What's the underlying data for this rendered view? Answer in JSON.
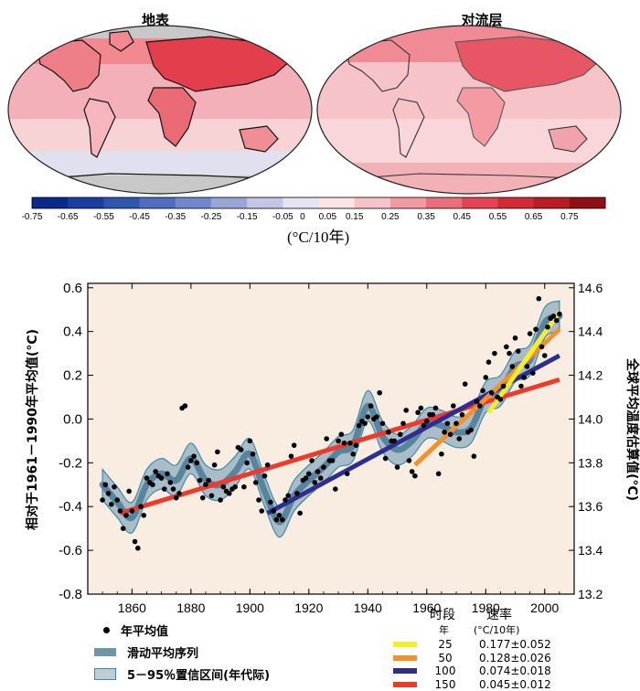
{
  "maps": {
    "left_title": "地表",
    "right_title": "对流层",
    "colorbar_ticks": [
      "-0.75",
      "-0.65",
      "-0.55",
      "-0.45",
      "-0.35",
      "-0.25",
      "-0.15",
      "-0.05",
      "0",
      "0.05",
      "0.15",
      "0.25",
      "0.35",
      "0.45",
      "0.55",
      "0.65",
      "0.75"
    ],
    "colorbar_colors": [
      "#0a2a8c",
      "#1a3ea0",
      "#2e55b0",
      "#4c6fc0",
      "#7087cc",
      "#9aa5d6",
      "#c3c6e4",
      "#e4e4f2",
      "#fbe3e6",
      "#f7c3c8",
      "#f19aa2",
      "#ea6f7a",
      "#e34352",
      "#d42a36",
      "#b81c24",
      "#8f1016"
    ],
    "unit": "(°C/10年)",
    "land_color": "#c8c8c8",
    "ocean_base": "#f2b5bb"
  },
  "chart_data": {
    "type": "line",
    "title": "",
    "xlabel": "",
    "ylabel": "相对于1961－1990年平均值(°C)",
    "ylabel_right": "全球平均温度估算值(°C)",
    "xlim": [
      1845,
      2010
    ],
    "ylim": [
      -0.8,
      0.62
    ],
    "ylim_right": [
      13.2,
      14.62
    ],
    "x_ticks": [
      "1860",
      "1880",
      "1900",
      "1920",
      "1940",
      "1960",
      "1980",
      "2000"
    ],
    "y_ticks": [
      "0.6",
      "0.4",
      "0.2",
      "0.0",
      "-0.2",
      "-0.4",
      "-0.6",
      "-0.8"
    ],
    "y_ticks_right": [
      "14.6",
      "14.4",
      "14.2",
      "14.0",
      "13.8",
      "13.6",
      "13.4",
      "13.2"
    ],
    "annual_points": {
      "x": [
        1850,
        1851,
        1852,
        1853,
        1854,
        1855,
        1856,
        1857,
        1858,
        1859,
        1860,
        1861,
        1862,
        1863,
        1864,
        1865,
        1866,
        1867,
        1868,
        1869,
        1870,
        1871,
        1872,
        1873,
        1874,
        1875,
        1876,
        1877,
        1878,
        1879,
        1880,
        1881,
        1882,
        1883,
        1884,
        1885,
        1886,
        1887,
        1888,
        1889,
        1890,
        1891,
        1892,
        1893,
        1894,
        1895,
        1896,
        1897,
        1898,
        1899,
        1900,
        1901,
        1902,
        1903,
        1904,
        1905,
        1906,
        1907,
        1908,
        1909,
        1910,
        1911,
        1912,
        1913,
        1914,
        1915,
        1916,
        1917,
        1918,
        1919,
        1920,
        1921,
        1922,
        1923,
        1924,
        1925,
        1926,
        1927,
        1928,
        1929,
        1930,
        1931,
        1932,
        1933,
        1934,
        1935,
        1936,
        1937,
        1938,
        1939,
        1940,
        1941,
        1942,
        1943,
        1944,
        1945,
        1946,
        1947,
        1948,
        1949,
        1950,
        1951,
        1952,
        1953,
        1954,
        1955,
        1956,
        1957,
        1958,
        1959,
        1960,
        1961,
        1962,
        1963,
        1964,
        1965,
        1966,
        1967,
        1968,
        1969,
        1970,
        1971,
        1972,
        1973,
        1974,
        1975,
        1976,
        1977,
        1978,
        1979,
        1980,
        1981,
        1982,
        1983,
        1984,
        1985,
        1986,
        1987,
        1988,
        1989,
        1990,
        1991,
        1992,
        1993,
        1994,
        1995,
        1996,
        1997,
        1998,
        1999,
        2000,
        2001,
        2002,
        2003,
        2004,
        2005
      ],
      "y": [
        -0.37,
        -0.3,
        -0.34,
        -0.39,
        -0.31,
        -0.37,
        -0.42,
        -0.5,
        -0.44,
        -0.33,
        -0.42,
        -0.56,
        -0.59,
        -0.4,
        -0.44,
        -0.27,
        -0.29,
        -0.3,
        -0.24,
        -0.26,
        -0.27,
        -0.32,
        -0.25,
        -0.29,
        -0.32,
        -0.36,
        -0.34,
        0.05,
        0.06,
        -0.22,
        -0.19,
        -0.17,
        -0.2,
        -0.28,
        -0.36,
        -0.3,
        -0.28,
        -0.35,
        -0.21,
        -0.15,
        -0.37,
        -0.31,
        -0.33,
        -0.34,
        -0.32,
        -0.31,
        -0.13,
        -0.14,
        -0.31,
        -0.2,
        -0.1,
        -0.16,
        -0.29,
        -0.37,
        -0.42,
        -0.26,
        -0.21,
        -0.38,
        -0.42,
        -0.46,
        -0.44,
        -0.46,
        -0.37,
        -0.35,
        -0.17,
        -0.12,
        -0.34,
        -0.43,
        -0.28,
        -0.27,
        -0.25,
        -0.19,
        -0.29,
        -0.24,
        -0.27,
        -0.22,
        -0.09,
        -0.19,
        -0.19,
        -0.32,
        -0.1,
        -0.07,
        -0.11,
        -0.25,
        -0.11,
        -0.16,
        -0.12,
        -0.03,
        -0.01,
        -0.02,
        0.01,
        0.06,
        0.0,
        0.01,
        0.12,
        -0.02,
        -0.18,
        -0.06,
        -0.1,
        -0.1,
        -0.22,
        -0.07,
        -0.02,
        0.04,
        -0.19,
        -0.24,
        -0.26,
        0.03,
        0.05,
        -0.03,
        -0.01,
        0.02,
        0.02,
        0.05,
        -0.25,
        -0.16,
        -0.06,
        -0.02,
        -0.07,
        0.06,
        -0.02,
        -0.09,
        0.02,
        0.16,
        -0.06,
        -0.05,
        -0.17,
        0.08,
        0.06,
        0.13,
        0.19,
        0.26,
        0.12,
        0.3,
        0.1,
        0.09,
        0.15,
        0.33,
        0.3,
        0.24,
        0.37,
        0.31,
        0.15,
        0.19,
        0.24,
        0.39,
        0.21,
        0.41,
        0.55,
        0.33,
        0.29,
        0.42,
        0.46,
        0.47,
        0.45,
        0.48
      ],
      "label": "年平均值"
    },
    "smoothed": {
      "x": [
        1850,
        1855,
        1860,
        1865,
        1870,
        1875,
        1880,
        1885,
        1890,
        1895,
        1900,
        1905,
        1910,
        1915,
        1920,
        1925,
        1930,
        1935,
        1940,
        1945,
        1950,
        1955,
        1960,
        1965,
        1970,
        1975,
        1980,
        1985,
        1990,
        1995,
        2000,
        2005
      ],
      "y": [
        -0.3,
        -0.38,
        -0.45,
        -0.3,
        -0.25,
        -0.28,
        -0.18,
        -0.28,
        -0.3,
        -0.24,
        -0.16,
        -0.33,
        -0.47,
        -0.35,
        -0.28,
        -0.22,
        -0.15,
        -0.12,
        0.06,
        -0.08,
        -0.14,
        -0.1,
        -0.02,
        -0.03,
        -0.06,
        -0.04,
        0.1,
        0.13,
        0.24,
        0.27,
        0.44,
        0.47
      ],
      "label": "滑动平均序列"
    },
    "uncertainty_label": "5－95％置信区间(年代际)",
    "band_half_width": 0.07,
    "trend_lines": [
      {
        "period": "150",
        "from": 1856,
        "to": 2005,
        "y0": -0.43,
        "y1": 0.18,
        "color": "#ee3a2c",
        "rate": "0.045±0.012"
      },
      {
        "period": "100",
        "from": 1906,
        "to": 2005,
        "y0": -0.43,
        "y1": 0.29,
        "color": "#2e2e90",
        "rate": "0.074±0.018"
      },
      {
        "period": "50",
        "from": 1956,
        "to": 2005,
        "y0": -0.21,
        "y1": 0.41,
        "color": "#f5902c",
        "rate": "0.128±0.026"
      },
      {
        "period": "25",
        "from": 1981,
        "to": 2005,
        "y0": 0.03,
        "y1": 0.49,
        "color": "#f5ee2c",
        "rate": "0.177±0.052"
      }
    ],
    "rate_table": {
      "period_header": "时段",
      "period_unit": "年",
      "rate_header": "速率",
      "rate_unit": "(°C/10年)"
    },
    "colors": {
      "plot_background": "#f8ede0",
      "band": "#a9bdc8",
      "band_edge": "#3f8aa8",
      "smooth": "#4b7a96",
      "point": "#000000"
    }
  }
}
